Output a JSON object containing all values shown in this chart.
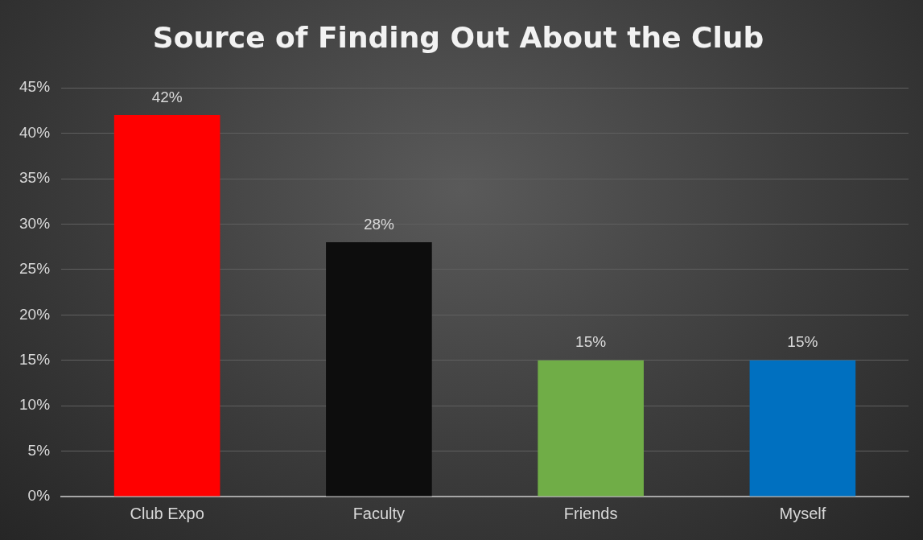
{
  "chart_data": {
    "type": "bar",
    "title": "Source of Finding Out About the Club",
    "categories": [
      "Club Expo",
      "Faculty",
      "Friends",
      "Myself"
    ],
    "values": [
      42,
      28,
      15,
      15
    ],
    "colors": [
      "#ff0000",
      "#0d0d0d",
      "#70ad47",
      "#0070c0"
    ],
    "value_labels": [
      "42%",
      "28%",
      "15%",
      "15%"
    ],
    "ylim": [
      0,
      45
    ],
    "yticks": [
      {
        "value": 0,
        "label": "0%"
      },
      {
        "value": 5,
        "label": "5%"
      },
      {
        "value": 10,
        "label": "10%"
      },
      {
        "value": 15,
        "label": "15%"
      },
      {
        "value": 20,
        "label": "20%"
      },
      {
        "value": 25,
        "label": "25%"
      },
      {
        "value": 30,
        "label": "30%"
      },
      {
        "value": 35,
        "label": "35%"
      },
      {
        "value": 40,
        "label": "40%"
      },
      {
        "value": 45,
        "label": "45%"
      }
    ],
    "grid": "y",
    "legend": false
  }
}
